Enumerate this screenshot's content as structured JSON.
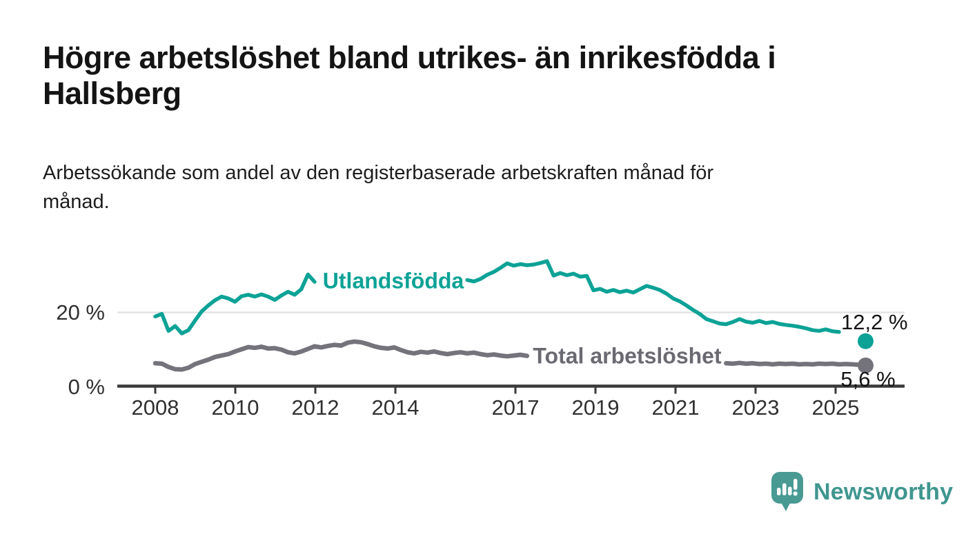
{
  "header": {
    "title": "Högre arbetslöshet bland utrikes- än inrikesfödda i\nHallsberg",
    "subtitle": "Arbetssökande som andel av den registerbaserade arbetskraften månad för\nmånad."
  },
  "footer": {
    "brand": "Newsworthy",
    "logo_icon": "bar-chart-speech-bubble-icon"
  },
  "colors": {
    "utlandsfodda": "#0ca296",
    "total": "#74727a",
    "axis": "#3a3a3a",
    "gridline": "#e3e3e3",
    "text": "#303030"
  },
  "chart_data": {
    "type": "line",
    "unit": "%",
    "x_start": 2008.0,
    "x_end": 2025.75,
    "x_ticks": [
      "2008",
      "2010",
      "2012",
      "2014",
      "2017",
      "2019",
      "2021",
      "2023",
      "2025"
    ],
    "x_tick_years": [
      2008,
      2010,
      2012,
      2014,
      2017,
      2019,
      2021,
      2023,
      2025
    ],
    "y_axis": {
      "ticks": [
        {
          "value": 0,
          "label": "0 %"
        },
        {
          "value": 20,
          "label": "20 %"
        }
      ],
      "gridlines_at": [
        20
      ],
      "max": 35
    },
    "legend_position": "inline-on-line",
    "grid": "horizontal-only",
    "series": [
      {
        "name": "Utlandsfödda",
        "color": "#0ca296",
        "end_label": "12,2 %",
        "end_value": 12.2,
        "label_gap": [
          2012.1,
          2015.72
        ],
        "end_gap": [
          2025.2,
          2025.74
        ],
        "values": [
          18.9,
          19.6,
          15.0,
          16.3,
          14.3,
          15.2,
          17.8,
          20.3,
          21.9,
          23.3,
          24.3,
          23.8,
          22.9,
          24.4,
          24.8,
          24.3,
          24.9,
          24.3,
          23.4,
          24.6,
          25.6,
          24.8,
          26.3,
          30.3,
          28.3,
          28.8,
          29.3,
          29.8,
          30.6,
          32.8,
          30.4,
          29.6,
          29.9,
          28.9,
          29.4,
          29.0,
          29.5,
          28.9,
          28.4,
          28.8,
          28.3,
          28.7,
          28.9,
          28.4,
          28.0,
          28.4,
          28.0,
          28.8,
          28.4,
          29.1,
          30.2,
          31.0,
          32.1,
          33.3,
          32.7,
          33.1,
          32.8,
          33.0,
          33.4,
          33.9,
          30.0,
          30.7,
          30.1,
          30.5,
          29.7,
          29.9,
          26.0,
          26.4,
          25.6,
          26.1,
          25.5,
          25.9,
          25.4,
          26.3,
          27.2,
          26.7,
          26.1,
          25.1,
          23.8,
          23.0,
          21.9,
          20.7,
          19.6,
          18.2,
          17.6,
          17.0,
          16.8,
          17.4,
          18.2,
          17.5,
          17.2,
          17.7,
          17.1,
          17.4,
          16.9,
          16.6,
          16.4,
          16.1,
          15.7,
          15.2,
          15.0,
          15.4,
          14.9,
          14.7,
          14.4,
          13.6,
          12.8,
          12.2
        ]
      },
      {
        "name": "Total arbetslöshet",
        "color": "#74727a",
        "end_label": "5,6 %",
        "end_value": 5.6,
        "label_gap": [
          2017.45,
          2022.18
        ],
        "end_gap": null,
        "values": [
          6.2,
          6.1,
          5.2,
          4.6,
          4.5,
          5.0,
          6.0,
          6.6,
          7.2,
          7.9,
          8.3,
          8.7,
          9.4,
          10.0,
          10.6,
          10.4,
          10.7,
          10.2,
          10.3,
          9.9,
          9.2,
          8.9,
          9.4,
          10.1,
          10.8,
          10.5,
          10.9,
          11.2,
          11.0,
          11.8,
          12.1,
          11.9,
          11.4,
          10.8,
          10.4,
          10.2,
          10.5,
          9.8,
          9.2,
          8.9,
          9.3,
          9.1,
          9.4,
          9.0,
          8.7,
          9.0,
          9.2,
          8.9,
          9.1,
          8.7,
          8.4,
          8.6,
          8.3,
          8.1,
          8.3,
          8.5,
          8.2,
          8.0,
          7.9,
          7.7,
          7.6,
          7.5,
          7.4,
          7.3,
          7.2,
          7.1,
          7.0,
          7.0,
          6.9,
          6.9,
          6.8,
          6.9,
          7.0,
          7.3,
          7.5,
          7.4,
          7.2,
          7.1,
          7.0,
          6.9,
          6.8,
          6.7,
          6.6,
          6.5,
          6.4,
          6.3,
          6.2,
          6.1,
          6.3,
          6.1,
          6.2,
          6.0,
          6.1,
          5.9,
          6.1,
          6.0,
          6.1,
          5.9,
          6.0,
          5.9,
          6.1,
          6.0,
          6.1,
          5.9,
          6.0,
          5.9,
          5.8,
          5.6
        ]
      }
    ]
  }
}
